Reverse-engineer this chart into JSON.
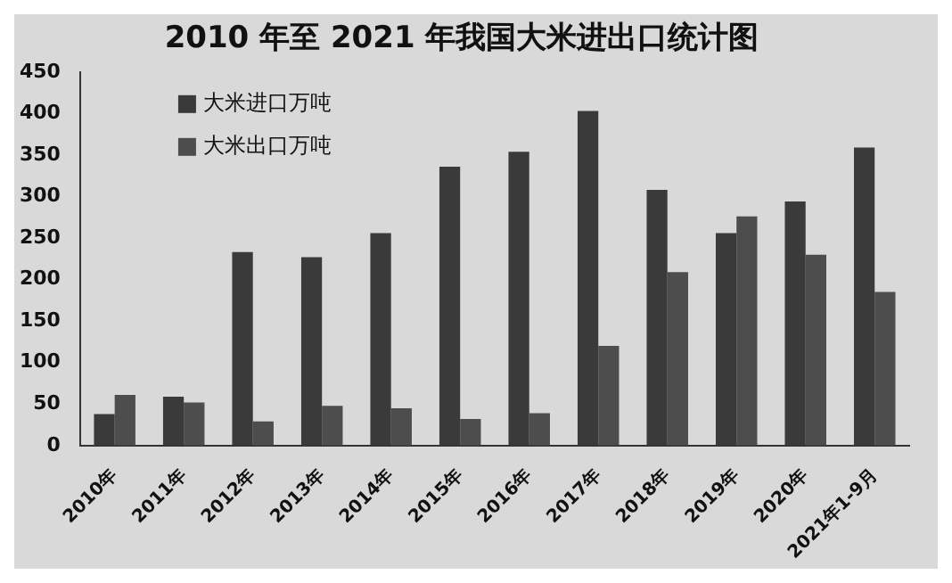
{
  "chart_data": {
    "type": "bar",
    "title": "2010 年至 2021 年我国大米进出口统计图",
    "categories": [
      "2010年",
      "2011年",
      "2012年",
      "2013年",
      "2014年",
      "2015年",
      "2016年",
      "2017年",
      "2018年",
      "2019年",
      "2020年",
      "2021年1-9月"
    ],
    "series": [
      {
        "name": "大米进口万吨",
        "color": "#3a3a3a",
        "values": [
          38,
          59,
          233,
          227,
          256,
          336,
          354,
          403,
          308,
          256,
          294,
          359
        ]
      },
      {
        "name": "大米出口万吨",
        "color": "#4d4d4d",
        "values": [
          61,
          52,
          29,
          48,
          45,
          32,
          39,
          120,
          209,
          276,
          230,
          185
        ]
      }
    ],
    "ylim": [
      0,
      450
    ],
    "yticks": [
      0,
      50,
      100,
      150,
      200,
      250,
      300,
      350,
      400,
      450
    ],
    "grid": false,
    "legend": "top left"
  }
}
